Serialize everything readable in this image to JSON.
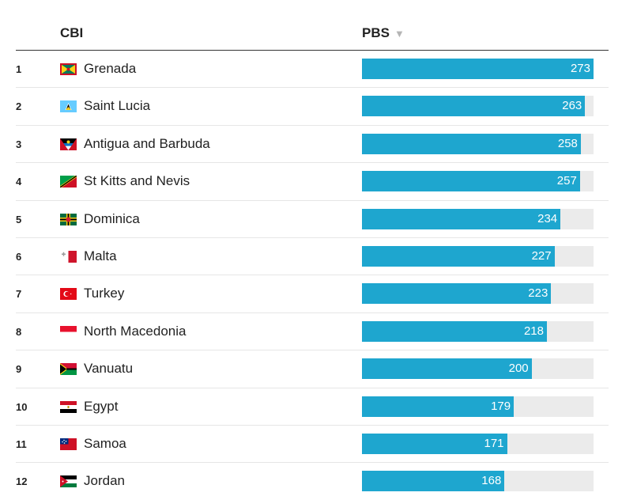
{
  "header": {
    "col1": "CBI",
    "col2": "PBS",
    "sort_icon": "sort-descending-icon"
  },
  "colors": {
    "bar": "#1ea6cf",
    "track": "#ebebeb"
  },
  "chart_data": {
    "type": "bar",
    "orientation": "horizontal",
    "title": "",
    "xlabel": "PBS",
    "ylabel": "CBI",
    "xlim": [
      0,
      273
    ],
    "categories": [
      "Grenada",
      "Saint Lucia",
      "Antigua and Barbuda",
      "St Kitts and Nevis",
      "Dominica",
      "Malta",
      "Turkey",
      "North Macedonia",
      "Vanuatu",
      "Egypt",
      "Samoa",
      "Jordan"
    ],
    "values": [
      273,
      263,
      258,
      257,
      234,
      227,
      223,
      218,
      200,
      179,
      171,
      168
    ]
  },
  "rows": [
    {
      "rank": "1",
      "country": "Grenada",
      "value": 273,
      "label": "273",
      "flag": "grenada-flag-icon"
    },
    {
      "rank": "2",
      "country": "Saint Lucia",
      "value": 263,
      "label": "263",
      "flag": "saint-lucia-flag-icon"
    },
    {
      "rank": "3",
      "country": "Antigua and Barbuda",
      "value": 258,
      "label": "258",
      "flag": "antigua-barbuda-flag-icon"
    },
    {
      "rank": "4",
      "country": "St Kitts and Nevis",
      "value": 257,
      "label": "257",
      "flag": "st-kitts-nevis-flag-icon"
    },
    {
      "rank": "5",
      "country": "Dominica",
      "value": 234,
      "label": "234",
      "flag": "dominica-flag-icon"
    },
    {
      "rank": "6",
      "country": "Malta",
      "value": 227,
      "label": "227",
      "flag": "malta-flag-icon"
    },
    {
      "rank": "7",
      "country": "Turkey",
      "value": 223,
      "label": "223",
      "flag": "turkey-flag-icon"
    },
    {
      "rank": "8",
      "country": "North Macedonia",
      "value": 218,
      "label": "218",
      "flag": "north-macedonia-flag-icon"
    },
    {
      "rank": "9",
      "country": "Vanuatu",
      "value": 200,
      "label": "200",
      "flag": "vanuatu-flag-icon"
    },
    {
      "rank": "10",
      "country": "Egypt",
      "value": 179,
      "label": "179",
      "flag": "egypt-flag-icon"
    },
    {
      "rank": "11",
      "country": "Samoa",
      "value": 171,
      "label": "171",
      "flag": "samoa-flag-icon"
    },
    {
      "rank": "12",
      "country": "Jordan",
      "value": 168,
      "label": "168",
      "flag": "jordan-flag-icon"
    }
  ]
}
